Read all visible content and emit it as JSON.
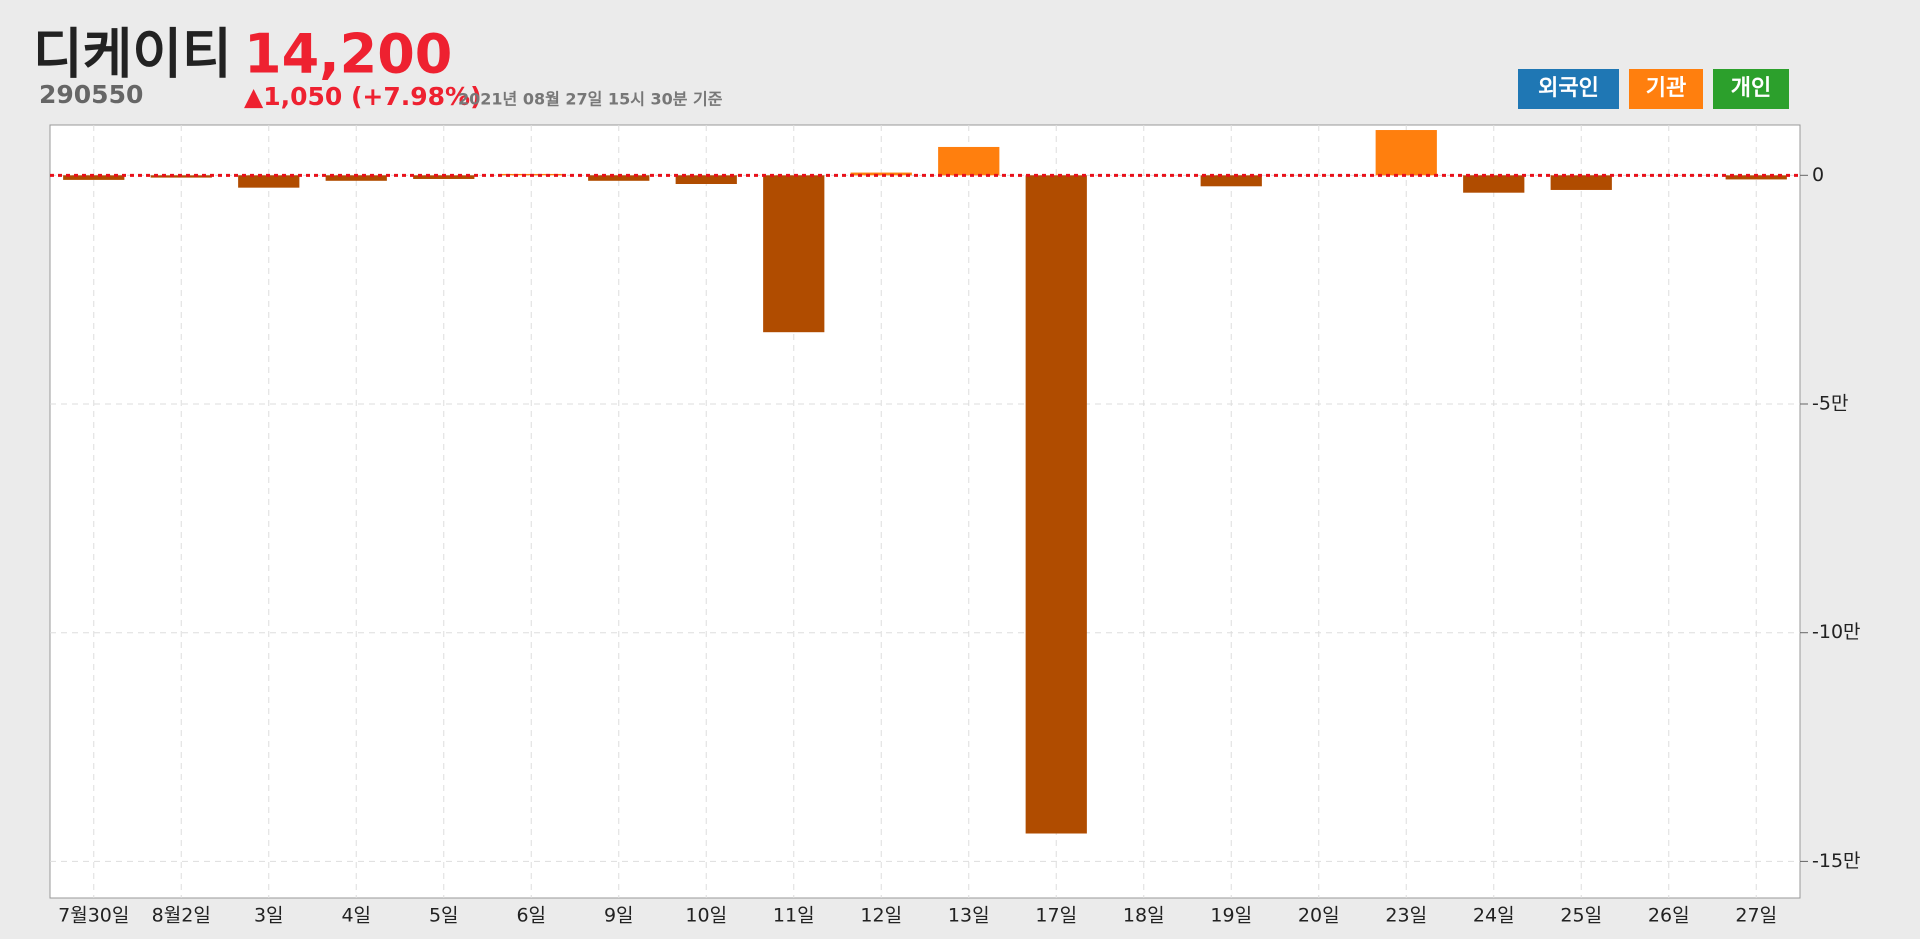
{
  "chart_data": {
    "type": "bar",
    "title": "디케이티",
    "price": "14,200",
    "code": "290550",
    "change": "▲1,050 (+7.98%)",
    "timestamp": "2021년 08월 27일 15시 30분 기준",
    "buttons": [
      {
        "name": "외국인",
        "color": "#1f77b4"
      },
      {
        "name": "기관",
        "color": "#ff7f0e"
      },
      {
        "name": "개인",
        "color": "#2ca02c"
      }
    ],
    "categories": [
      "7월30일",
      "8월2일",
      "3일",
      "4일",
      "5일",
      "6일",
      "9일",
      "10일",
      "11일",
      "12일",
      "13일",
      "17일",
      "18일",
      "19일",
      "20일",
      "23일",
      "24일",
      "25일",
      "26일",
      "27일"
    ],
    "series": [
      {
        "color": "#ff7f0e",
        "negative_color": "#b04c00",
        "values": [
          -1000,
          -500,
          -2700,
          -1200,
          -800,
          300,
          -1200,
          -1900,
          -34300,
          600,
          6200,
          -143900,
          0,
          -2400,
          0,
          9900,
          -3800,
          -3200,
          0,
          -900
        ]
      }
    ],
    "ylim": [
      -158000,
      11000
    ],
    "yticks": [
      0,
      {
        "value": -50000,
        "label": "-5만"
      },
      {
        "value": -100000,
        "label": "-10만"
      },
      {
        "value": -150000,
        "label": "-15만"
      }
    ],
    "grid": true,
    "zero_line_color": "#e8101a"
  }
}
